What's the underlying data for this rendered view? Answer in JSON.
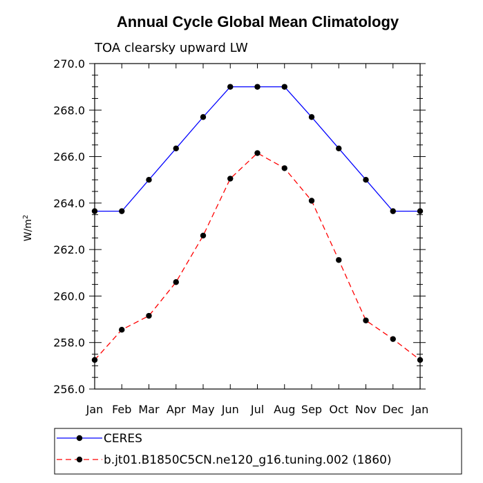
{
  "chart_data": {
    "type": "line",
    "title": "Annual Cycle Global Mean Climatology",
    "subtitle": "TOA clearsky upward LW",
    "ylabel_base": "W/m",
    "ylabel_exp": "2",
    "xlabel": "",
    "categories": [
      "Jan",
      "Feb",
      "Mar",
      "Apr",
      "May",
      "Jun",
      "Jul",
      "Aug",
      "Sep",
      "Oct",
      "Nov",
      "Dec",
      "Jan"
    ],
    "ylim": [
      256.0,
      270.0
    ],
    "yticks": [
      "256.0",
      "258.0",
      "260.0",
      "262.0",
      "264.0",
      "266.0",
      "268.0",
      "270.0"
    ],
    "grid": false,
    "legend_position": "bottom",
    "series": [
      {
        "name": "CERES",
        "color": "#0000ff",
        "dash": "solid",
        "values": [
          263.65,
          263.65,
          265.0,
          266.35,
          267.7,
          269.0,
          269.0,
          269.0,
          267.7,
          266.35,
          265.0,
          263.65,
          263.65
        ]
      },
      {
        "name": "b.jt01.B1850C5CN.ne120_g16.tuning.002 (1860)",
        "color": "#ff0000",
        "dash": "dashed",
        "values": [
          257.25,
          258.55,
          259.15,
          260.6,
          262.6,
          265.05,
          266.15,
          265.5,
          264.1,
          261.55,
          258.95,
          258.15,
          257.25
        ]
      }
    ]
  }
}
